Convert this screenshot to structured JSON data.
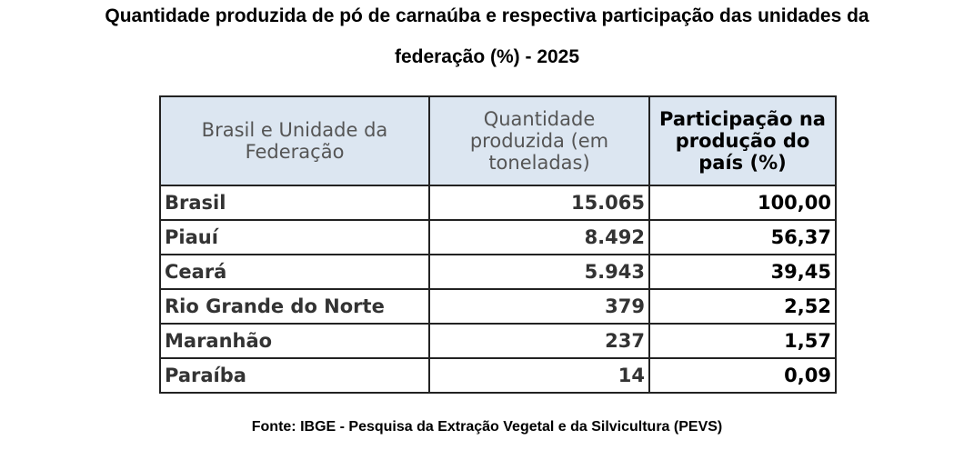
{
  "header": {
    "title_line1": "Quantidade produzida de pó de carnaúba e respectiva participação das unidades da",
    "title_line2": "federação (%) - 2025"
  },
  "table": {
    "columns": [
      "Brasil e Unidade da Federação",
      "Quantidade produzida (em toneladas)",
      "Participação na produção do país (%)"
    ],
    "rows": [
      [
        "Brasil",
        "15.065",
        "100,00"
      ],
      [
        "Piauí",
        "8.492",
        "56,37"
      ],
      [
        "Ceará",
        "5.943",
        "39,45"
      ],
      [
        "Rio Grande do Norte",
        "379",
        "2,52"
      ],
      [
        "Maranhão",
        "237",
        "1,57"
      ],
      [
        "Paraíba",
        "14",
        "0,09"
      ]
    ]
  },
  "footer": {
    "source": "Fonte: IBGE - Pesquisa da Extração Vegetal e da Silvicultura (PEVS)"
  }
}
